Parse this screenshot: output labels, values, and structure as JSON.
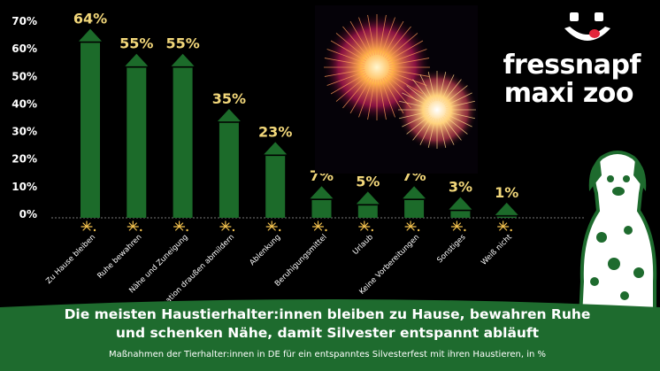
{
  "brand": {
    "line1": "fressnapf",
    "line2": "maxi zoo",
    "colors": {
      "green": "#1e6b2e",
      "bar": "#1c6b2a",
      "label_yellow": "#f2d77a",
      "background": "#000000"
    }
  },
  "headline": {
    "line1": "Die meisten Haustierhalter:innen bleiben zu Hause, bewahren Ruhe",
    "line2": "und schenken Nähe, damit Silvester entspannt abläuft"
  },
  "subline": "Maßnahmen der Tierhalter:innen in DE für ein entspanntes Silvesterfest mit ihren Haustieren, in %",
  "chart_data": {
    "type": "bar",
    "categories": [
      "Zu Hause bleiben",
      "Ruhe bewahren",
      "Nähe und Zuneigung",
      "Situation draußen abmildern",
      "Ablenkung",
      "Beruhigungsmittel",
      "Urlaub",
      "Keine Vorbereitungen",
      "Sonstiges",
      "Weiß nicht"
    ],
    "values": [
      64,
      55,
      55,
      35,
      23,
      7,
      5,
      7,
      3,
      1
    ],
    "value_labels": [
      "64%",
      "55%",
      "55%",
      "35%",
      "23%",
      "7%",
      "5%",
      "7%",
      "3%",
      "1%"
    ],
    "yticks": [
      "0%",
      "10%",
      "20%",
      "30%",
      "40%",
      "50%",
      "60%",
      "70%"
    ],
    "ylim": [
      0,
      70
    ],
    "grid": false,
    "bar_color": "#1c6b2a"
  }
}
